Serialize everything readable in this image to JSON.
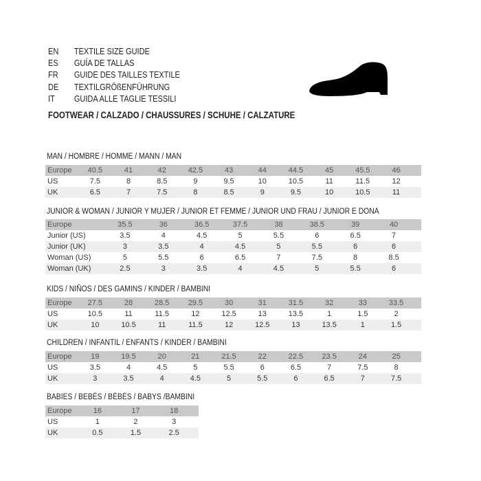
{
  "header": {
    "languages": [
      {
        "code": "EN",
        "text": "TEXTILE SIZE GUIDE"
      },
      {
        "code": "ES",
        "text": "GUÍA DE TALLAS"
      },
      {
        "code": "FR",
        "text": "GUIDE DES TAILLES TEXTILE"
      },
      {
        "code": "DE",
        "text": "TEXTILGRÖßENFÜHRUNG"
      },
      {
        "code": "IT",
        "text": "GUIDA ALLE TAGLIE TESSILI"
      }
    ],
    "footwear_title": "FOOTWEAR / CALZADO / CHAUSSURES / SCHUHE / CALZATURE",
    "icon": "shoe-silhouette-icon"
  },
  "colors": {
    "header_row": "#c9c9c9",
    "alt_row": "#eeeeee"
  },
  "sections": [
    {
      "title": "MAN / HOMBRE / HOMME / MANN / MAN",
      "rows": [
        {
          "label": "Europe",
          "values": [
            "40.5",
            "41",
            "42",
            "42.5",
            "43",
            "44",
            "44.5",
            "45",
            "45.5",
            "46"
          ]
        },
        {
          "label": "US",
          "values": [
            "7.5",
            "8",
            "8.5",
            "9",
            "9.5",
            "10",
            "10.5",
            "11",
            "11.5",
            "12"
          ]
        },
        {
          "label": "UK",
          "values": [
            "6.5",
            "7",
            "7.5",
            "8",
            "8.5",
            "9",
            "9.5",
            "10",
            "10.5",
            "11"
          ]
        }
      ]
    },
    {
      "title": "JUNIOR & WOMAN / JUNIOR Y MUJER / JUNIOR ET FEMME / JUNIOR UND FRAU / JUNIOR E DONA",
      "rows": [
        {
          "label": "Europe",
          "values": [
            "35.5",
            "36",
            "36.5",
            "37.5",
            "38",
            "38.5",
            "39",
            "40"
          ]
        },
        {
          "label": "Junior (US)",
          "values": [
            "3.5",
            "4",
            "4.5",
            "5",
            "5.5",
            "6",
            "6.5",
            "7"
          ]
        },
        {
          "label": "Junior (UK)",
          "values": [
            "3",
            "3.5",
            "4",
            "4.5",
            "5",
            "5.5",
            "6",
            "6"
          ]
        },
        {
          "label": "Woman (US)",
          "values": [
            "5",
            "5.5",
            "6",
            "6.5",
            "7",
            "7.5",
            "8",
            "8.5"
          ]
        },
        {
          "label": "Woman (UK)",
          "values": [
            "2.5",
            "3",
            "3.5",
            "4",
            "4.5",
            "5",
            "5.5",
            "6"
          ]
        }
      ]
    },
    {
      "title": "KIDS / NIÑOS / DES GAMINS / KINDER / BAMBINI",
      "rows": [
        {
          "label": "Europe",
          "values": [
            "27.5",
            "28",
            "28.5",
            "29.5",
            "30",
            "31",
            "31.5",
            "32",
            "33",
            "33.5"
          ]
        },
        {
          "label": "US",
          "values": [
            "10.5",
            "11",
            "11.5",
            "12",
            "12.5",
            "13",
            "13.5",
            "1",
            "1.5",
            "2"
          ]
        },
        {
          "label": "UK",
          "values": [
            "10",
            "10.5",
            "11",
            "11.5",
            "12",
            "12.5",
            "13",
            "13.5",
            "1",
            "1.5"
          ]
        }
      ]
    },
    {
      "title": "CHILDREN / INFANTIL / ENFANTS / KINDER / BAMBINI",
      "rows": [
        {
          "label": "Europe",
          "values": [
            "19",
            "19.5",
            "20",
            "21",
            "21.5",
            "22",
            "22.5",
            "23.5",
            "24",
            "25"
          ]
        },
        {
          "label": "US",
          "values": [
            "3.5",
            "4",
            "4.5",
            "5",
            "5.5",
            "6",
            "6.5",
            "7",
            "7.5",
            "8"
          ]
        },
        {
          "label": "UK",
          "values": [
            "3",
            "3.5",
            "4",
            "4.5",
            "5",
            "5.5",
            "6",
            "6.5",
            "7",
            "7.5"
          ]
        }
      ]
    },
    {
      "title": "BABIES  / BEBÉS / BÉBÉS / BABYS /BAMBINI",
      "rows": [
        {
          "label": "Europe",
          "values": [
            "16",
            "17",
            "18"
          ]
        },
        {
          "label": "US",
          "values": [
            "1",
            "2",
            "3"
          ]
        },
        {
          "label": "UK",
          "values": [
            "0.5",
            "1.5",
            "2.5"
          ]
        }
      ]
    }
  ]
}
